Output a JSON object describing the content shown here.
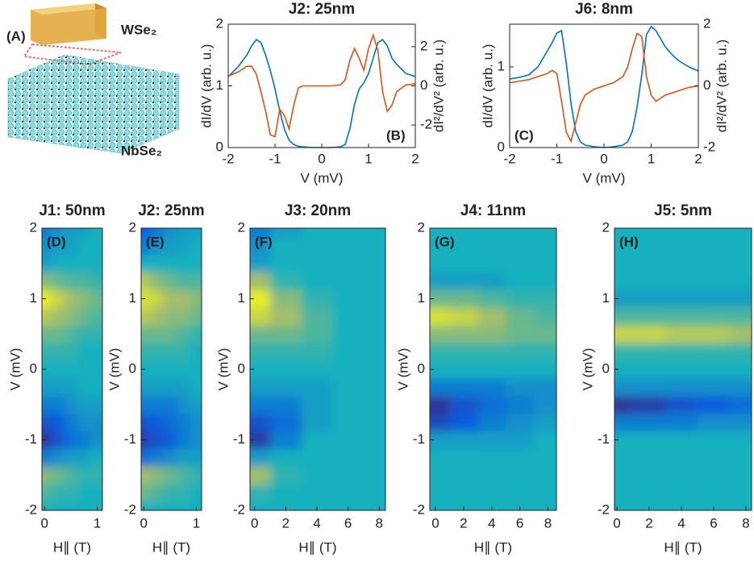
{
  "illustration": {
    "label": "(A)",
    "top_layer": "WSe₂",
    "bottom_layer": "NbSe₂"
  },
  "chart_data": [
    {
      "type": "line",
      "title": "J2: 25nm",
      "panel_label": "(B)",
      "xlabel": "V (mV)",
      "ylabel": "dI/dV (arb. u.)",
      "y2label": "dI²/dV² (arb. u.)",
      "xlim": [
        -2,
        2
      ],
      "xticks": [
        -2,
        -1,
        0,
        1,
        2
      ],
      "ylim": [
        0,
        2
      ],
      "yticks": [
        0,
        1,
        2
      ],
      "y2lim": [
        -3.15,
        3.15
      ],
      "y2ticks": [
        -2,
        0,
        2
      ],
      "x": [
        -2,
        -1.8,
        -1.6,
        -1.5,
        -1.4,
        -1.3,
        -1.2,
        -1.1,
        -1,
        -0.9,
        -0.8,
        -0.7,
        -0.6,
        -0.5,
        -0.4,
        -0.2,
        0,
        0.2,
        0.4,
        0.5,
        0.6,
        0.7,
        0.8,
        0.9,
        1,
        1.1,
        1.2,
        1.3,
        1.4,
        1.5,
        1.6,
        1.8,
        2
      ],
      "series": [
        {
          "color": "#0072bd",
          "values": [
            1.15,
            1.3,
            1.5,
            1.65,
            1.75,
            1.7,
            1.5,
            1.25,
            0.95,
            0.6,
            0.3,
            0.12,
            0.05,
            0.02,
            0.01,
            0,
            0,
            0,
            0.01,
            0.05,
            0.3,
            0.7,
            0.95,
            1.05,
            1.2,
            1.45,
            1.7,
            1.75,
            1.65,
            1.45,
            1.35,
            1.2,
            1.15
          ]
        },
        {
          "color": "#d95319",
          "axis": "y2",
          "values": [
            0.5,
            0.7,
            1.0,
            1.0,
            0.6,
            -0.3,
            -1.3,
            -2.5,
            -2.6,
            -1.2,
            -1.5,
            -2.2,
            -1.0,
            -0.1,
            0,
            0,
            0,
            0,
            0.05,
            0.3,
            1.3,
            1.9,
            1.4,
            0.8,
            1.9,
            2.6,
            1.8,
            -0.3,
            -1.3,
            -1.0,
            -0.3,
            0.05,
            0.1
          ]
        }
      ]
    },
    {
      "type": "line",
      "title": "J6: 8nm",
      "panel_label": "(C)",
      "xlabel": "V (mV)",
      "ylabel": "dI/dV (arb. u.)",
      "y2label": "dI²/dV² (arb. u.)",
      "xlim": [
        -2,
        2
      ],
      "xticks": [
        -2,
        -1,
        0,
        1,
        2
      ],
      "ylim": [
        0,
        1.53
      ],
      "yticks": [
        0,
        1
      ],
      "y2lim": [
        -2,
        2
      ],
      "y2ticks": [
        -2,
        0,
        2
      ],
      "x": [
        -2,
        -1.8,
        -1.6,
        -1.5,
        -1.4,
        -1.3,
        -1.2,
        -1.1,
        -1,
        -0.9,
        -0.8,
        -0.7,
        -0.6,
        -0.5,
        -0.4,
        -0.2,
        0,
        0.2,
        0.4,
        0.5,
        0.6,
        0.7,
        0.8,
        0.9,
        1,
        1.1,
        1.2,
        1.3,
        1.4,
        1.5,
        1.6,
        1.8,
        2
      ],
      "series": [
        {
          "color": "#0072bd",
          "values": [
            0.85,
            0.87,
            0.9,
            0.95,
            1.0,
            1.1,
            1.2,
            1.3,
            1.42,
            1.45,
            1.05,
            0.55,
            0.2,
            0.07,
            0.03,
            0.01,
            0,
            0.01,
            0.03,
            0.07,
            0.2,
            0.5,
            0.9,
            1.4,
            1.5,
            1.45,
            1.35,
            1.25,
            1.18,
            1.12,
            1.07,
            1.0,
            0.95
          ]
        },
        {
          "color": "#d95319",
          "axis": "y2",
          "values": [
            0.1,
            0.15,
            0.2,
            0.25,
            0.3,
            0.35,
            0.4,
            0.5,
            0.4,
            -0.5,
            -1.5,
            -1.8,
            -1.2,
            -0.6,
            -0.3,
            -0.1,
            0,
            0.1,
            0.3,
            0.6,
            1.2,
            1.7,
            1.6,
            0.3,
            -0.3,
            -0.5,
            -0.4,
            -0.3,
            -0.25,
            -0.2,
            -0.15,
            -0.05,
            0
          ]
        }
      ]
    },
    {
      "type": "heatmap",
      "title": "J1: 50nm",
      "panel_label": "(D)",
      "xlabel": "H∥ (T)",
      "ylabel": "V (mV)",
      "xlim": [
        -0.05,
        1.1
      ],
      "xticks": [
        0,
        1
      ],
      "ylim": [
        -2,
        2
      ],
      "yticks": [
        -2,
        -1,
        0,
        1,
        2
      ],
      "zlim": [
        -1,
        1
      ],
      "colormap": [
        "#352a87",
        "#0f5cdd",
        "#14b0bf",
        "#a5be6a",
        "#f9fb0e"
      ],
      "x": [
        0,
        0.25,
        0.5,
        0.75,
        1
      ],
      "y": [
        -2,
        -1.75,
        -1.5,
        -1.25,
        -1,
        -0.75,
        -0.5,
        -0.25,
        0,
        0.25,
        0.5,
        0.75,
        1,
        1.25,
        1.5,
        1.75,
        2
      ],
      "z": [
        [
          0,
          0,
          0,
          0,
          0
        ],
        [
          0.2,
          0.1,
          0.1,
          0,
          0
        ],
        [
          0.4,
          0.3,
          0.2,
          0.1,
          0.1
        ],
        [
          -0.3,
          -0.2,
          -0.1,
          -0.1,
          0
        ],
        [
          -0.9,
          -0.6,
          -0.4,
          -0.3,
          -0.2
        ],
        [
          -0.6,
          -0.5,
          -0.3,
          -0.2,
          -0.2
        ],
        [
          -0.3,
          -0.3,
          -0.2,
          -0.1,
          -0.1
        ],
        [
          -0.1,
          -0.1,
          -0.1,
          0,
          0
        ],
        [
          0,
          0,
          0,
          0,
          0
        ],
        [
          0.1,
          0.1,
          0.1,
          0,
          0
        ],
        [
          0.3,
          0.3,
          0.2,
          0.1,
          0.1
        ],
        [
          0.6,
          0.5,
          0.4,
          0.3,
          0.2
        ],
        [
          0.9,
          0.7,
          0.5,
          0.4,
          0.3
        ],
        [
          0.4,
          0.3,
          0.2,
          0.2,
          0.1
        ],
        [
          -0.1,
          0,
          0,
          0,
          0
        ],
        [
          -0.2,
          -0.1,
          -0.1,
          0,
          0
        ],
        [
          -0.3,
          -0.2,
          -0.1,
          -0.1,
          0
        ]
      ]
    },
    {
      "type": "heatmap",
      "title": "J2: 25nm",
      "panel_label": "(E)",
      "xlabel": "H∥ (T)",
      "ylabel": "V (mV)",
      "xlim": [
        -0.05,
        1.1
      ],
      "xticks": [
        0,
        1
      ],
      "ylim": [
        -2,
        2
      ],
      "yticks": [
        -2,
        -1,
        0,
        1,
        2
      ],
      "zlim": [
        -1,
        1
      ],
      "colormap": [
        "#352a87",
        "#0f5cdd",
        "#14b0bf",
        "#a5be6a",
        "#f9fb0e"
      ],
      "x": [
        0,
        0.25,
        0.5,
        0.75,
        1
      ],
      "y": [
        -2,
        -1.75,
        -1.5,
        -1.25,
        -1,
        -0.75,
        -0.5,
        -0.25,
        0,
        0.25,
        0.5,
        0.75,
        1,
        1.25,
        1.5,
        1.75,
        2
      ],
      "z": [
        [
          0,
          0,
          0,
          0,
          0
        ],
        [
          0.3,
          0.2,
          0.1,
          0.1,
          0
        ],
        [
          0.5,
          0.4,
          0.3,
          0.2,
          0.1
        ],
        [
          -0.4,
          -0.3,
          -0.2,
          -0.1,
          -0.1
        ],
        [
          -0.8,
          -0.6,
          -0.5,
          -0.3,
          -0.2
        ],
        [
          -0.6,
          -0.5,
          -0.4,
          -0.3,
          -0.2
        ],
        [
          -0.3,
          -0.3,
          -0.3,
          -0.2,
          -0.1
        ],
        [
          -0.1,
          -0.1,
          -0.1,
          -0.1,
          0
        ],
        [
          0,
          0,
          0,
          0,
          0
        ],
        [
          0.1,
          0.1,
          0.1,
          0.1,
          0
        ],
        [
          0.3,
          0.3,
          0.3,
          0.2,
          0.1
        ],
        [
          0.6,
          0.5,
          0.4,
          0.4,
          0.3
        ],
        [
          0.8,
          0.7,
          0.5,
          0.5,
          0.4
        ],
        [
          0.6,
          0.4,
          0.3,
          0.2,
          0.2
        ],
        [
          0,
          0,
          0,
          0,
          0
        ],
        [
          -0.3,
          -0.2,
          -0.1,
          -0.1,
          0
        ],
        [
          -0.5,
          -0.3,
          -0.2,
          -0.1,
          -0.1
        ]
      ]
    },
    {
      "type": "heatmap",
      "title": "J3: 20nm",
      "panel_label": "(F)",
      "xlabel": "H∥ (T)",
      "ylabel": "V (mV)",
      "xlim": [
        -0.3,
        8.4
      ],
      "xticks": [
        0,
        2,
        4,
        6,
        8
      ],
      "ylim": [
        -2,
        2
      ],
      "yticks": [
        -2,
        -1,
        0,
        1,
        2
      ],
      "zlim": [
        -1,
        1
      ],
      "colormap": [
        "#352a87",
        "#0f5cdd",
        "#14b0bf",
        "#a5be6a",
        "#f9fb0e"
      ],
      "x": [
        0,
        2,
        4,
        6,
        8
      ],
      "y": [
        -2,
        -1.75,
        -1.5,
        -1.25,
        -1,
        -0.75,
        -0.5,
        -0.25,
        0,
        0.25,
        0.5,
        0.75,
        1,
        1.25,
        1.5,
        1.75,
        2
      ],
      "z": [
        [
          0,
          0,
          0,
          0,
          0
        ],
        [
          0.1,
          0,
          0,
          0,
          0
        ],
        [
          0.5,
          0.1,
          0,
          0,
          0
        ],
        [
          -0.1,
          0,
          0,
          0,
          0
        ],
        [
          -0.8,
          -0.3,
          0,
          0,
          0
        ],
        [
          -0.6,
          -0.4,
          -0.1,
          0,
          0
        ],
        [
          -0.3,
          -0.3,
          -0.1,
          0,
          0
        ],
        [
          -0.1,
          -0.1,
          -0.1,
          0,
          0
        ],
        [
          0,
          0,
          0,
          0,
          0
        ],
        [
          0.1,
          0.1,
          0.1,
          0,
          0
        ],
        [
          0.3,
          0.3,
          0.2,
          0,
          0
        ],
        [
          0.7,
          0.5,
          0.2,
          0,
          0
        ],
        [
          0.9,
          0.4,
          0.1,
          0,
          0
        ],
        [
          0.5,
          0.1,
          0,
          0,
          0
        ],
        [
          -0.1,
          0,
          0,
          0,
          0
        ],
        [
          -0.2,
          0,
          0,
          0,
          0
        ],
        [
          -0.3,
          -0.1,
          0,
          0,
          0
        ]
      ]
    },
    {
      "type": "heatmap",
      "title": "J4: 11nm",
      "panel_label": "(G)",
      "xlabel": "H∥ (T)",
      "ylabel": "V (mV)",
      "xlim": [
        -0.4,
        8.6
      ],
      "xticks": [
        0,
        2,
        4,
        6,
        8
      ],
      "ylim": [
        -2,
        2
      ],
      "yticks": [
        -2,
        -1,
        0,
        1,
        2
      ],
      "zlim": [
        -1,
        1
      ],
      "colormap": [
        "#352a87",
        "#0f5cdd",
        "#14b0bf",
        "#a5be6a",
        "#f9fb0e"
      ],
      "x": [
        0,
        2,
        4,
        6,
        8
      ],
      "y": [
        -2,
        -1.75,
        -1.5,
        -1.25,
        -1,
        -0.75,
        -0.5,
        -0.25,
        0,
        0.25,
        0.5,
        0.75,
        1,
        1.25,
        1.5,
        1.75,
        2
      ],
      "z": [
        [
          0,
          0,
          0,
          0,
          0
        ],
        [
          0,
          0,
          0,
          0,
          0
        ],
        [
          0,
          0,
          0,
          0,
          0
        ],
        [
          0,
          0,
          0,
          0,
          0
        ],
        [
          -0.1,
          -0.1,
          -0.1,
          -0.1,
          0
        ],
        [
          -0.7,
          -0.5,
          -0.3,
          -0.2,
          -0.1
        ],
        [
          -0.9,
          -0.6,
          -0.4,
          -0.3,
          -0.2
        ],
        [
          -0.3,
          -0.3,
          -0.3,
          -0.2,
          -0.2
        ],
        [
          0,
          0,
          0,
          0,
          0
        ],
        [
          0.1,
          0.1,
          0.1,
          0.1,
          0.1
        ],
        [
          0.4,
          0.4,
          0.4,
          0.3,
          0.3
        ],
        [
          0.8,
          0.7,
          0.5,
          0.3,
          0.2
        ],
        [
          0.3,
          0.3,
          0.2,
          0.1,
          0.1
        ],
        [
          -0.1,
          -0.1,
          -0.1,
          0,
          0
        ],
        [
          0,
          0,
          0,
          0,
          0
        ],
        [
          0,
          0,
          0,
          0,
          0
        ],
        [
          0,
          0,
          0,
          0,
          0
        ]
      ]
    },
    {
      "type": "heatmap",
      "title": "J5: 5nm",
      "panel_label": "(H)",
      "xlabel": "H∥ (T)",
      "ylabel": "V (mV)",
      "xlim": [
        -0.15,
        8.35
      ],
      "xticks": [
        0,
        2,
        4,
        6,
        8
      ],
      "ylim": [
        -2,
        2
      ],
      "yticks": [
        -2,
        -1,
        0,
        1,
        2
      ],
      "zlim": [
        -1,
        1
      ],
      "colormap": [
        "#352a87",
        "#0f5cdd",
        "#14b0bf",
        "#a5be6a",
        "#f9fb0e"
      ],
      "x": [
        0,
        2,
        4,
        6,
        8
      ],
      "y": [
        -2,
        -1.75,
        -1.5,
        -1.25,
        -1,
        -0.75,
        -0.5,
        -0.25,
        0,
        0.25,
        0.5,
        0.75,
        1,
        1.25,
        1.5,
        1.75,
        2
      ],
      "z": [
        [
          0,
          0,
          0,
          0,
          0
        ],
        [
          0,
          0,
          0,
          0,
          0
        ],
        [
          0,
          0,
          0,
          0,
          0
        ],
        [
          0,
          0,
          0,
          0,
          0
        ],
        [
          0,
          0,
          0,
          0,
          0
        ],
        [
          -0.3,
          -0.3,
          -0.3,
          -0.2,
          -0.2
        ],
        [
          -0.9,
          -0.8,
          -0.6,
          -0.5,
          -0.4
        ],
        [
          -0.2,
          -0.2,
          -0.2,
          -0.2,
          -0.2
        ],
        [
          0,
          0,
          0,
          0,
          0
        ],
        [
          0.1,
          0.1,
          0.1,
          0.1,
          0.1
        ],
        [
          0.7,
          0.7,
          0.6,
          0.6,
          0.5
        ],
        [
          0.2,
          0.2,
          0.2,
          0.2,
          0.2
        ],
        [
          -0.1,
          -0.1,
          -0.1,
          -0.1,
          -0.1
        ],
        [
          0,
          0,
          0,
          0,
          0
        ],
        [
          0,
          0,
          0,
          0,
          0
        ],
        [
          0,
          0,
          0,
          0,
          0
        ],
        [
          0,
          0,
          0,
          0,
          0
        ]
      ]
    }
  ]
}
